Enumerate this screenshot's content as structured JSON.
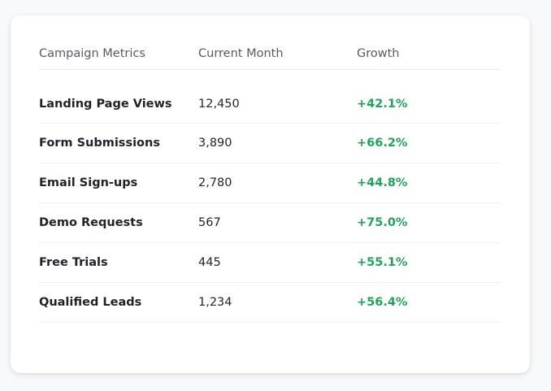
{
  "table": {
    "headers": {
      "metric": "Campaign Metrics",
      "current": "Current Month",
      "growth": "Growth"
    },
    "rows": [
      {
        "metric": "Landing Page Views",
        "current": "12,450",
        "growth": "+42.1%"
      },
      {
        "metric": "Form Submissions",
        "current": "3,890",
        "growth": "+66.2%"
      },
      {
        "metric": "Email Sign-ups",
        "current": "2,780",
        "growth": "+44.8%"
      },
      {
        "metric": "Demo Requests",
        "current": "567",
        "growth": "+75.0%"
      },
      {
        "metric": "Free Trials",
        "current": "445",
        "growth": "+55.1%"
      },
      {
        "metric": "Qualified Leads",
        "current": "1,234",
        "growth": "+56.4%"
      }
    ]
  },
  "colors": {
    "growth_positive": "#22a35a",
    "card_background": "#ffffff",
    "page_background": "#f8f9fb"
  }
}
